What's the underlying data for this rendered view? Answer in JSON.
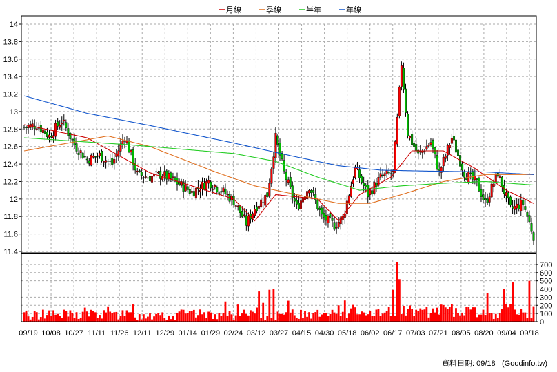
{
  "chart_data": {
    "type": "candlestick_with_volume",
    "legend": {
      "placement": "top-center",
      "items": [
        {
          "name": "月線",
          "color": "#cc0000"
        },
        {
          "name": "季線",
          "color": "#e07020"
        },
        {
          "name": "半年",
          "color": "#22cc22"
        },
        {
          "name": "年線",
          "color": "#1155cc"
        }
      ]
    },
    "price_axis": {
      "ylim": [
        11.4,
        14.0
      ],
      "ticks": [
        "14",
        "13.8",
        "13.6",
        "13.4",
        "13.2",
        "13",
        "12.8",
        "12.6",
        "12.4",
        "12.2",
        "12",
        "11.8",
        "11.6",
        "11.4"
      ]
    },
    "volume_axis": {
      "ylim": [
        0,
        750
      ],
      "ticks": [
        "700",
        "600",
        "500",
        "400",
        "300",
        "200",
        "100",
        "0"
      ]
    },
    "x_axis": {
      "tick_labels": [
        "09/19",
        "10/08",
        "10/27",
        "11/11",
        "11/26",
        "12/11",
        "12/29",
        "01/14",
        "01/29",
        "02/24",
        "03/12",
        "03/27",
        "04/15",
        "04/30",
        "05/18",
        "06/02",
        "06/17",
        "07/03",
        "07/21",
        "08/05",
        "08/20",
        "09/04",
        "09/18"
      ]
    },
    "grid": true,
    "colors": {
      "up": "#ff0000",
      "down": "#00bb00",
      "volume": "#ff0000"
    },
    "close_anchors": [
      [
        0,
        12.82
      ],
      [
        6,
        12.85
      ],
      [
        12,
        12.72
      ],
      [
        18,
        12.9
      ],
      [
        24,
        12.62
      ],
      [
        30,
        12.45
      ],
      [
        36,
        12.5
      ],
      [
        42,
        12.4
      ],
      [
        48,
        12.72
      ],
      [
        54,
        12.28
      ],
      [
        60,
        12.25
      ],
      [
        66,
        12.28
      ],
      [
        72,
        12.2
      ],
      [
        80,
        12.08
      ],
      [
        88,
        12.2
      ],
      [
        94,
        12.1
      ],
      [
        100,
        11.98
      ],
      [
        106,
        11.72
      ],
      [
        110,
        11.9
      ],
      [
        116,
        12.05
      ],
      [
        120,
        12.7
      ],
      [
        124,
        12.3
      ],
      [
        130,
        11.9
      ],
      [
        136,
        12.15
      ],
      [
        142,
        11.8
      ],
      [
        148,
        11.7
      ],
      [
        152,
        11.78
      ],
      [
        158,
        12.35
      ],
      [
        164,
        12.05
      ],
      [
        170,
        12.25
      ],
      [
        176,
        12.3
      ],
      [
        178,
        12.9
      ],
      [
        180,
        13.55
      ],
      [
        183,
        12.75
      ],
      [
        188,
        12.5
      ],
      [
        194,
        12.65
      ],
      [
        198,
        12.3
      ],
      [
        204,
        12.7
      ],
      [
        210,
        12.3
      ],
      [
        216,
        12.18
      ],
      [
        220,
        11.95
      ],
      [
        226,
        12.3
      ],
      [
        232,
        11.88
      ],
      [
        238,
        11.95
      ],
      [
        243,
        11.58
      ]
    ],
    "ma_anchors": {
      "月線": [
        [
          0,
          12.85
        ],
        [
          30,
          12.7
        ],
        [
          60,
          12.3
        ],
        [
          80,
          12.15
        ],
        [
          100,
          12.0
        ],
        [
          110,
          11.75
        ],
        [
          120,
          12.05
        ],
        [
          140,
          12.0
        ],
        [
          150,
          11.75
        ],
        [
          160,
          12.05
        ],
        [
          175,
          12.25
        ],
        [
          185,
          12.55
        ],
        [
          200,
          12.55
        ],
        [
          215,
          12.35
        ],
        [
          230,
          12.1
        ],
        [
          243,
          11.95
        ]
      ],
      "季線": [
        [
          0,
          12.55
        ],
        [
          40,
          12.72
        ],
        [
          60,
          12.6
        ],
        [
          90,
          12.32
        ],
        [
          110,
          12.15
        ],
        [
          130,
          12.05
        ],
        [
          150,
          11.95
        ],
        [
          165,
          11.95
        ],
        [
          180,
          12.05
        ],
        [
          200,
          12.2
        ],
        [
          220,
          12.28
        ],
        [
          243,
          12.28
        ]
      ],
      "半年": [
        [
          0,
          12.7
        ],
        [
          50,
          12.62
        ],
        [
          70,
          12.58
        ],
        [
          100,
          12.52
        ],
        [
          120,
          12.43
        ],
        [
          140,
          12.25
        ],
        [
          160,
          12.1
        ],
        [
          180,
          12.15
        ],
        [
          200,
          12.18
        ],
        [
          220,
          12.2
        ],
        [
          243,
          12.16
        ]
      ],
      "年線": [
        [
          0,
          13.18
        ],
        [
          30,
          12.98
        ],
        [
          60,
          12.84
        ],
        [
          100,
          12.64
        ],
        [
          130,
          12.48
        ],
        [
          150,
          12.38
        ],
        [
          170,
          12.33
        ],
        [
          190,
          12.32
        ],
        [
          220,
          12.31
        ],
        [
          243,
          12.28
        ]
      ]
    },
    "volume_spikes": [
      [
        112,
        370
      ],
      [
        114,
        230
      ],
      [
        117,
        390
      ],
      [
        119,
        400
      ],
      [
        150,
        200
      ],
      [
        176,
        390
      ],
      [
        178,
        730
      ],
      [
        179,
        520
      ],
      [
        221,
        350
      ],
      [
        229,
        400
      ],
      [
        233,
        480
      ],
      [
        241,
        500
      ]
    ],
    "source": {
      "label": "資料日期: 09/18",
      "site": "(Goodinfo.tw)"
    }
  }
}
